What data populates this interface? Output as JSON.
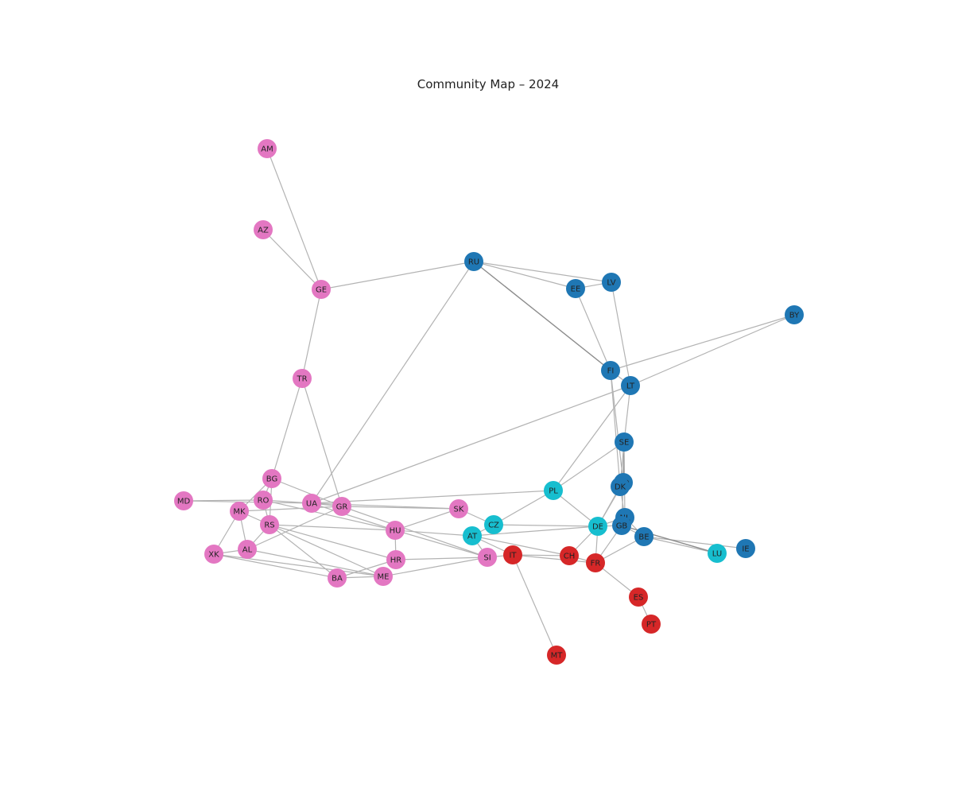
{
  "title": "Community Map – 2024",
  "communities": {
    "blue": {
      "color": "#1f77b4"
    },
    "cyan": {
      "color": "#17becf"
    },
    "red": {
      "color": "#d62728"
    },
    "pink": {
      "color": "#e377c2"
    }
  },
  "nodes": [
    {
      "id": "AM",
      "community": "pink"
    },
    {
      "id": "AZ",
      "community": "pink"
    },
    {
      "id": "GE",
      "community": "pink"
    },
    {
      "id": "TR",
      "community": "pink"
    },
    {
      "id": "BG",
      "community": "pink"
    },
    {
      "id": "RO",
      "community": "pink"
    },
    {
      "id": "MD",
      "community": "pink"
    },
    {
      "id": "MK",
      "community": "pink"
    },
    {
      "id": "UA",
      "community": "pink"
    },
    {
      "id": "GR",
      "community": "pink"
    },
    {
      "id": "RS",
      "community": "pink"
    },
    {
      "id": "XK",
      "community": "pink"
    },
    {
      "id": "AL",
      "community": "pink"
    },
    {
      "id": "BA",
      "community": "pink"
    },
    {
      "id": "ME",
      "community": "pink"
    },
    {
      "id": "HR",
      "community": "pink"
    },
    {
      "id": "HU",
      "community": "pink"
    },
    {
      "id": "SK",
      "community": "pink"
    },
    {
      "id": "SI",
      "community": "pink"
    },
    {
      "id": "RU",
      "community": "blue"
    },
    {
      "id": "EE",
      "community": "blue"
    },
    {
      "id": "LV",
      "community": "blue"
    },
    {
      "id": "BY",
      "community": "blue"
    },
    {
      "id": "FI",
      "community": "blue"
    },
    {
      "id": "LT",
      "community": "blue"
    },
    {
      "id": "SE",
      "community": "blue"
    },
    {
      "id": "NO",
      "community": "blue"
    },
    {
      "id": "DK",
      "community": "blue"
    },
    {
      "id": "NL",
      "community": "blue"
    },
    {
      "id": "GB",
      "community": "blue"
    },
    {
      "id": "BE",
      "community": "blue"
    },
    {
      "id": "IE",
      "community": "blue"
    },
    {
      "id": "PL",
      "community": "cyan"
    },
    {
      "id": "CZ",
      "community": "cyan"
    },
    {
      "id": "AT",
      "community": "cyan"
    },
    {
      "id": "DE",
      "community": "cyan"
    },
    {
      "id": "LU",
      "community": "cyan"
    },
    {
      "id": "IT",
      "community": "red"
    },
    {
      "id": "CH",
      "community": "red"
    },
    {
      "id": "FR",
      "community": "red"
    },
    {
      "id": "ES",
      "community": "red"
    },
    {
      "id": "PT",
      "community": "red"
    },
    {
      "id": "MT",
      "community": "red"
    }
  ],
  "edges": [
    [
      "AM",
      "GE"
    ],
    [
      "AZ",
      "GE"
    ],
    [
      "GE",
      "RU"
    ],
    [
      "GE",
      "TR"
    ],
    [
      "TR",
      "BG"
    ],
    [
      "TR",
      "GR"
    ],
    [
      "RU",
      "EE"
    ],
    [
      "RU",
      "LV"
    ],
    [
      "RU",
      "FI"
    ],
    [
      "RU",
      "UA"
    ],
    [
      "EE",
      "LV"
    ],
    [
      "EE",
      "FI"
    ],
    [
      "LV",
      "LT"
    ],
    [
      "BY",
      "LT"
    ],
    [
      "BY",
      "FI"
    ],
    [
      "FI",
      "LT"
    ],
    [
      "FI",
      "NO"
    ],
    [
      "FI",
      "DK"
    ],
    [
      "LT",
      "SE"
    ],
    [
      "LT",
      "PL"
    ],
    [
      "LT",
      "UA"
    ],
    [
      "SE",
      "NO"
    ],
    [
      "SE",
      "DK"
    ],
    [
      "SE",
      "NL"
    ],
    [
      "SE",
      "PL"
    ],
    [
      "NO",
      "DK"
    ],
    [
      "NO",
      "GB"
    ],
    [
      "NO",
      "DE"
    ],
    [
      "DK",
      "DE"
    ],
    [
      "DK",
      "NL"
    ],
    [
      "NL",
      "DE"
    ],
    [
      "NL",
      "BE"
    ],
    [
      "GB",
      "BE"
    ],
    [
      "GB",
      "FR"
    ],
    [
      "GB",
      "DE"
    ],
    [
      "BE",
      "LU"
    ],
    [
      "BE",
      "FR"
    ],
    [
      "BE",
      "IE"
    ],
    [
      "GB",
      "LU"
    ],
    [
      "PL",
      "DE"
    ],
    [
      "PL",
      "CZ"
    ],
    [
      "PL",
      "UA"
    ],
    [
      "CZ",
      "DE"
    ],
    [
      "CZ",
      "AT"
    ],
    [
      "CZ",
      "SK"
    ],
    [
      "AT",
      "DE"
    ],
    [
      "AT",
      "IT"
    ],
    [
      "AT",
      "SI"
    ],
    [
      "AT",
      "HU"
    ],
    [
      "DE",
      "FR"
    ],
    [
      "DE",
      "CH"
    ],
    [
      "CH",
      "FR"
    ],
    [
      "CH",
      "IT"
    ],
    [
      "CH",
      "AT"
    ],
    [
      "FR",
      "ES"
    ],
    [
      "FR",
      "IT"
    ],
    [
      "ES",
      "PT"
    ],
    [
      "IT",
      "SI"
    ],
    [
      "IT",
      "MT"
    ],
    [
      "SI",
      "HR"
    ],
    [
      "SI",
      "HU"
    ],
    [
      "SI",
      "ME"
    ],
    [
      "HU",
      "SK"
    ],
    [
      "HU",
      "HR"
    ],
    [
      "HU",
      "RS"
    ],
    [
      "HU",
      "UA"
    ],
    [
      "SK",
      "UA"
    ],
    [
      "HR",
      "BA"
    ],
    [
      "HR",
      "RS"
    ],
    [
      "BA",
      "RS"
    ],
    [
      "BA",
      "ME"
    ],
    [
      "BA",
      "XK"
    ],
    [
      "ME",
      "RS"
    ],
    [
      "ME",
      "AL"
    ],
    [
      "ME",
      "XK"
    ],
    [
      "RS",
      "MK"
    ],
    [
      "RS",
      "RO"
    ],
    [
      "RS",
      "BG"
    ],
    [
      "RS",
      "AL"
    ],
    [
      "MK",
      "XK"
    ],
    [
      "MK",
      "AL"
    ],
    [
      "MK",
      "BG"
    ],
    [
      "MK",
      "GR"
    ],
    [
      "AL",
      "GR"
    ],
    [
      "AL",
      "XK"
    ],
    [
      "RO",
      "MD"
    ],
    [
      "RO",
      "UA"
    ],
    [
      "RO",
      "BG"
    ],
    [
      "RO",
      "HU"
    ],
    [
      "MD",
      "UA"
    ],
    [
      "UA",
      "GR"
    ],
    [
      "GR",
      "BG"
    ],
    [
      "GR",
      "SI"
    ],
    [
      "GR",
      "SK"
    ]
  ],
  "dark_edges": [
    [
      "RU",
      "FI"
    ],
    [
      "GB",
      "LU"
    ],
    [
      "SE",
      "NO"
    ]
  ]
}
